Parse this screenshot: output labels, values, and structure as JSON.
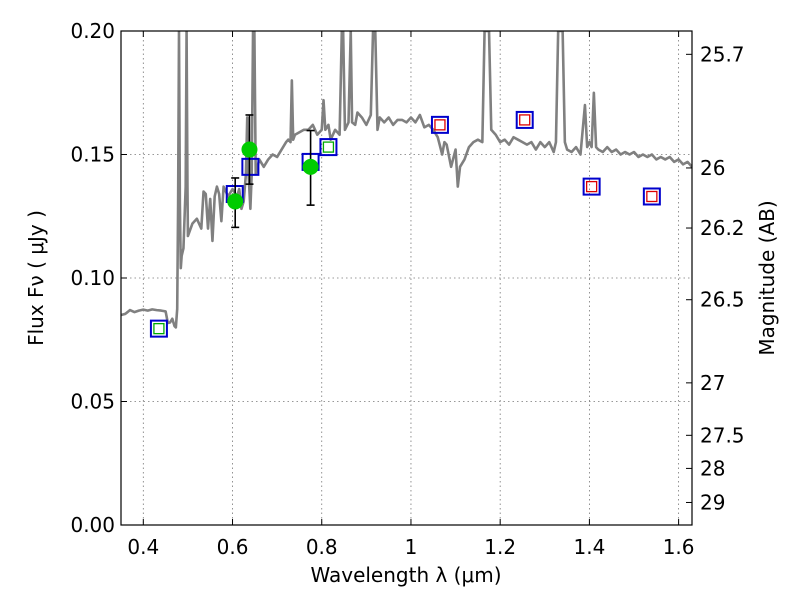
{
  "chart_data": {
    "type": "scatter",
    "title": "",
    "xlabel": "Wavelength  λ (μm)",
    "ylabel": "Flux  Fν ( μJy )",
    "ylabel_right": "Magnitude (AB)",
    "xlim": [
      0.35,
      1.63
    ],
    "ylim": [
      0.0,
      0.2
    ],
    "grid": true,
    "x_ticks": [
      0.4,
      0.6,
      0.8,
      1.0,
      1.2,
      1.4,
      1.6
    ],
    "x_tick_labels": [
      "0.4",
      "0.6",
      "0.8",
      "1",
      "1.2",
      "1.4",
      "1.6"
    ],
    "y_ticks": [
      0.0,
      0.05,
      0.1,
      0.15,
      0.2
    ],
    "y_tick_labels": [
      "0.00",
      "0.05",
      "0.10",
      "0.15",
      "0.20"
    ],
    "mag_ticks": [
      25.7,
      26,
      26.2,
      26.5,
      27,
      27.5,
      28,
      29
    ],
    "mag_tick_labels": [
      "25.7",
      "26",
      "26.2",
      "26.5",
      "27",
      "27.5",
      "28",
      "29"
    ],
    "colors": {
      "spectrum": "#808080",
      "observed_box": "#0000cc",
      "model_green": "#00aa00",
      "model_red": "#dd0000",
      "detection": "#00cc00",
      "errorbar": "#000000"
    },
    "series": [
      {
        "name": "model spectrum",
        "style": "line",
        "points": [
          [
            0.35,
            0.085
          ],
          [
            0.36,
            0.0855
          ],
          [
            0.37,
            0.087
          ],
          [
            0.38,
            0.0862
          ],
          [
            0.39,
            0.0868
          ],
          [
            0.4,
            0.0872
          ],
          [
            0.41,
            0.0868
          ],
          [
            0.42,
            0.0873
          ],
          [
            0.43,
            0.087
          ],
          [
            0.44,
            0.0868
          ],
          [
            0.45,
            0.0865
          ],
          [
            0.455,
            0.0818
          ],
          [
            0.46,
            0.082
          ],
          [
            0.465,
            0.0835
          ],
          [
            0.47,
            0.0805
          ],
          [
            0.473,
            0.08
          ],
          [
            0.476,
            0.0875
          ],
          [
            0.478,
            0.13
          ],
          [
            0.48,
            0.2
          ],
          [
            0.482,
            0.13
          ],
          [
            0.484,
            0.104
          ],
          [
            0.486,
            0.109
          ],
          [
            0.49,
            0.112
          ],
          [
            0.495,
            0.137
          ],
          [
            0.497,
            0.2
          ],
          [
            0.499,
            0.137
          ],
          [
            0.5,
            0.117
          ],
          [
            0.51,
            0.122
          ],
          [
            0.52,
            0.124
          ],
          [
            0.53,
            0.12
          ],
          [
            0.535,
            0.135
          ],
          [
            0.54,
            0.134
          ],
          [
            0.545,
            0.12
          ],
          [
            0.55,
            0.132
          ],
          [
            0.555,
            0.115
          ],
          [
            0.56,
            0.133
          ],
          [
            0.565,
            0.137
          ],
          [
            0.57,
            0.134
          ],
          [
            0.575,
            0.123
          ],
          [
            0.58,
            0.137
          ],
          [
            0.59,
            0.133
          ],
          [
            0.6,
            0.136
          ],
          [
            0.61,
            0.133
          ],
          [
            0.615,
            0.136
          ],
          [
            0.62,
            0.128
          ],
          [
            0.625,
            0.131
          ],
          [
            0.63,
            0.142
          ],
          [
            0.633,
            0.165
          ],
          [
            0.636,
            0.142
          ],
          [
            0.64,
            0.128
          ],
          [
            0.643,
            0.142
          ],
          [
            0.646,
            0.2
          ],
          [
            0.649,
            0.2
          ],
          [
            0.652,
            0.142
          ],
          [
            0.66,
            0.148
          ],
          [
            0.67,
            0.145
          ],
          [
            0.68,
            0.148
          ],
          [
            0.69,
            0.15
          ],
          [
            0.7,
            0.149
          ],
          [
            0.71,
            0.152
          ],
          [
            0.72,
            0.155
          ],
          [
            0.725,
            0.156
          ],
          [
            0.73,
            0.155
          ],
          [
            0.733,
            0.18
          ],
          [
            0.736,
            0.156
          ],
          [
            0.74,
            0.158
          ],
          [
            0.75,
            0.159
          ],
          [
            0.76,
            0.16
          ],
          [
            0.77,
            0.16
          ],
          [
            0.78,
            0.162
          ],
          [
            0.79,
            0.158
          ],
          [
            0.8,
            0.16
          ],
          [
            0.804,
            0.172
          ],
          [
            0.808,
            0.16
          ],
          [
            0.815,
            0.162
          ],
          [
            0.82,
            0.156
          ],
          [
            0.83,
            0.16
          ],
          [
            0.84,
            0.158
          ],
          [
            0.845,
            0.2
          ],
          [
            0.848,
            0.2
          ],
          [
            0.852,
            0.16
          ],
          [
            0.86,
            0.163
          ],
          [
            0.865,
            0.2
          ],
          [
            0.868,
            0.163
          ],
          [
            0.875,
            0.162
          ],
          [
            0.88,
            0.167
          ],
          [
            0.89,
            0.165
          ],
          [
            0.9,
            0.162
          ],
          [
            0.91,
            0.166
          ],
          [
            0.915,
            0.2
          ],
          [
            0.92,
            0.2
          ],
          [
            0.925,
            0.16
          ],
          [
            0.93,
            0.165
          ],
          [
            0.94,
            0.163
          ],
          [
            0.95,
            0.165
          ],
          [
            0.96,
            0.162
          ],
          [
            0.97,
            0.164
          ],
          [
            0.98,
            0.164
          ],
          [
            0.99,
            0.163
          ],
          [
            1.0,
            0.165
          ],
          [
            1.01,
            0.163
          ],
          [
            1.02,
            0.166
          ],
          [
            1.03,
            0.161
          ],
          [
            1.04,
            0.162
          ],
          [
            1.05,
            0.16
          ],
          [
            1.06,
            0.157
          ],
          [
            1.07,
            0.15
          ],
          [
            1.075,
            0.155
          ],
          [
            1.08,
            0.154
          ],
          [
            1.09,
            0.145
          ],
          [
            1.1,
            0.152
          ],
          [
            1.105,
            0.137
          ],
          [
            1.11,
            0.145
          ],
          [
            1.12,
            0.148
          ],
          [
            1.13,
            0.153
          ],
          [
            1.14,
            0.155
          ],
          [
            1.15,
            0.156
          ],
          [
            1.16,
            0.155
          ],
          [
            1.165,
            0.2
          ],
          [
            1.175,
            0.2
          ],
          [
            1.18,
            0.16
          ],
          [
            1.19,
            0.158
          ],
          [
            1.2,
            0.155
          ],
          [
            1.21,
            0.156
          ],
          [
            1.22,
            0.154
          ],
          [
            1.23,
            0.157
          ],
          [
            1.24,
            0.156
          ],
          [
            1.25,
            0.155
          ],
          [
            1.26,
            0.154
          ],
          [
            1.27,
            0.155
          ],
          [
            1.28,
            0.152
          ],
          [
            1.29,
            0.155
          ],
          [
            1.3,
            0.153
          ],
          [
            1.31,
            0.155
          ],
          [
            1.32,
            0.151
          ],
          [
            1.325,
            0.155
          ],
          [
            1.33,
            0.2
          ],
          [
            1.34,
            0.2
          ],
          [
            1.345,
            0.155
          ],
          [
            1.35,
            0.152
          ],
          [
            1.36,
            0.151
          ],
          [
            1.37,
            0.153
          ],
          [
            1.38,
            0.15
          ],
          [
            1.39,
            0.17
          ],
          [
            1.395,
            0.153
          ],
          [
            1.4,
            0.155
          ],
          [
            1.405,
            0.153
          ],
          [
            1.41,
            0.175
          ],
          [
            1.415,
            0.153
          ],
          [
            1.42,
            0.152
          ],
          [
            1.43,
            0.151
          ],
          [
            1.44,
            0.153
          ],
          [
            1.45,
            0.151
          ],
          [
            1.46,
            0.152
          ],
          [
            1.47,
            0.15
          ],
          [
            1.48,
            0.151
          ],
          [
            1.49,
            0.15
          ],
          [
            1.5,
            0.151
          ],
          [
            1.51,
            0.149
          ],
          [
            1.52,
            0.15
          ],
          [
            1.53,
            0.149
          ],
          [
            1.54,
            0.15
          ],
          [
            1.55,
            0.148
          ],
          [
            1.56,
            0.149
          ],
          [
            1.57,
            0.148
          ],
          [
            1.58,
            0.149
          ],
          [
            1.59,
            0.147
          ],
          [
            1.6,
            0.148
          ],
          [
            1.61,
            0.146
          ],
          [
            1.62,
            0.147
          ],
          [
            1.63,
            0.145
          ]
        ]
      },
      {
        "name": "observed photometry (open squares)",
        "style": "box",
        "points": [
          [
            0.435,
            0.0795
          ],
          [
            0.605,
            0.134
          ],
          [
            0.64,
            0.145
          ],
          [
            0.775,
            0.147
          ],
          [
            0.815,
            0.153
          ],
          [
            1.065,
            0.162
          ],
          [
            1.255,
            0.164
          ],
          [
            1.405,
            0.137
          ],
          [
            1.54,
            0.133
          ]
        ]
      },
      {
        "name": "model photometry (green squares)",
        "style": "small_square_green",
        "points": [
          [
            0.435,
            0.0795
          ],
          [
            0.815,
            0.153
          ]
        ]
      },
      {
        "name": "model photometry (red squares)",
        "style": "small_square_red",
        "points": [
          [
            1.065,
            0.162
          ],
          [
            1.255,
            0.164
          ],
          [
            1.405,
            0.137
          ],
          [
            1.54,
            0.133
          ]
        ]
      },
      {
        "name": "detections with error bars",
        "style": "dot",
        "points": [
          [
            0.606,
            0.131,
            0.1205,
            0.1405
          ],
          [
            0.638,
            0.152,
            0.138,
            0.166
          ],
          [
            0.775,
            0.145,
            0.1295,
            0.1597
          ]
        ]
      }
    ]
  }
}
